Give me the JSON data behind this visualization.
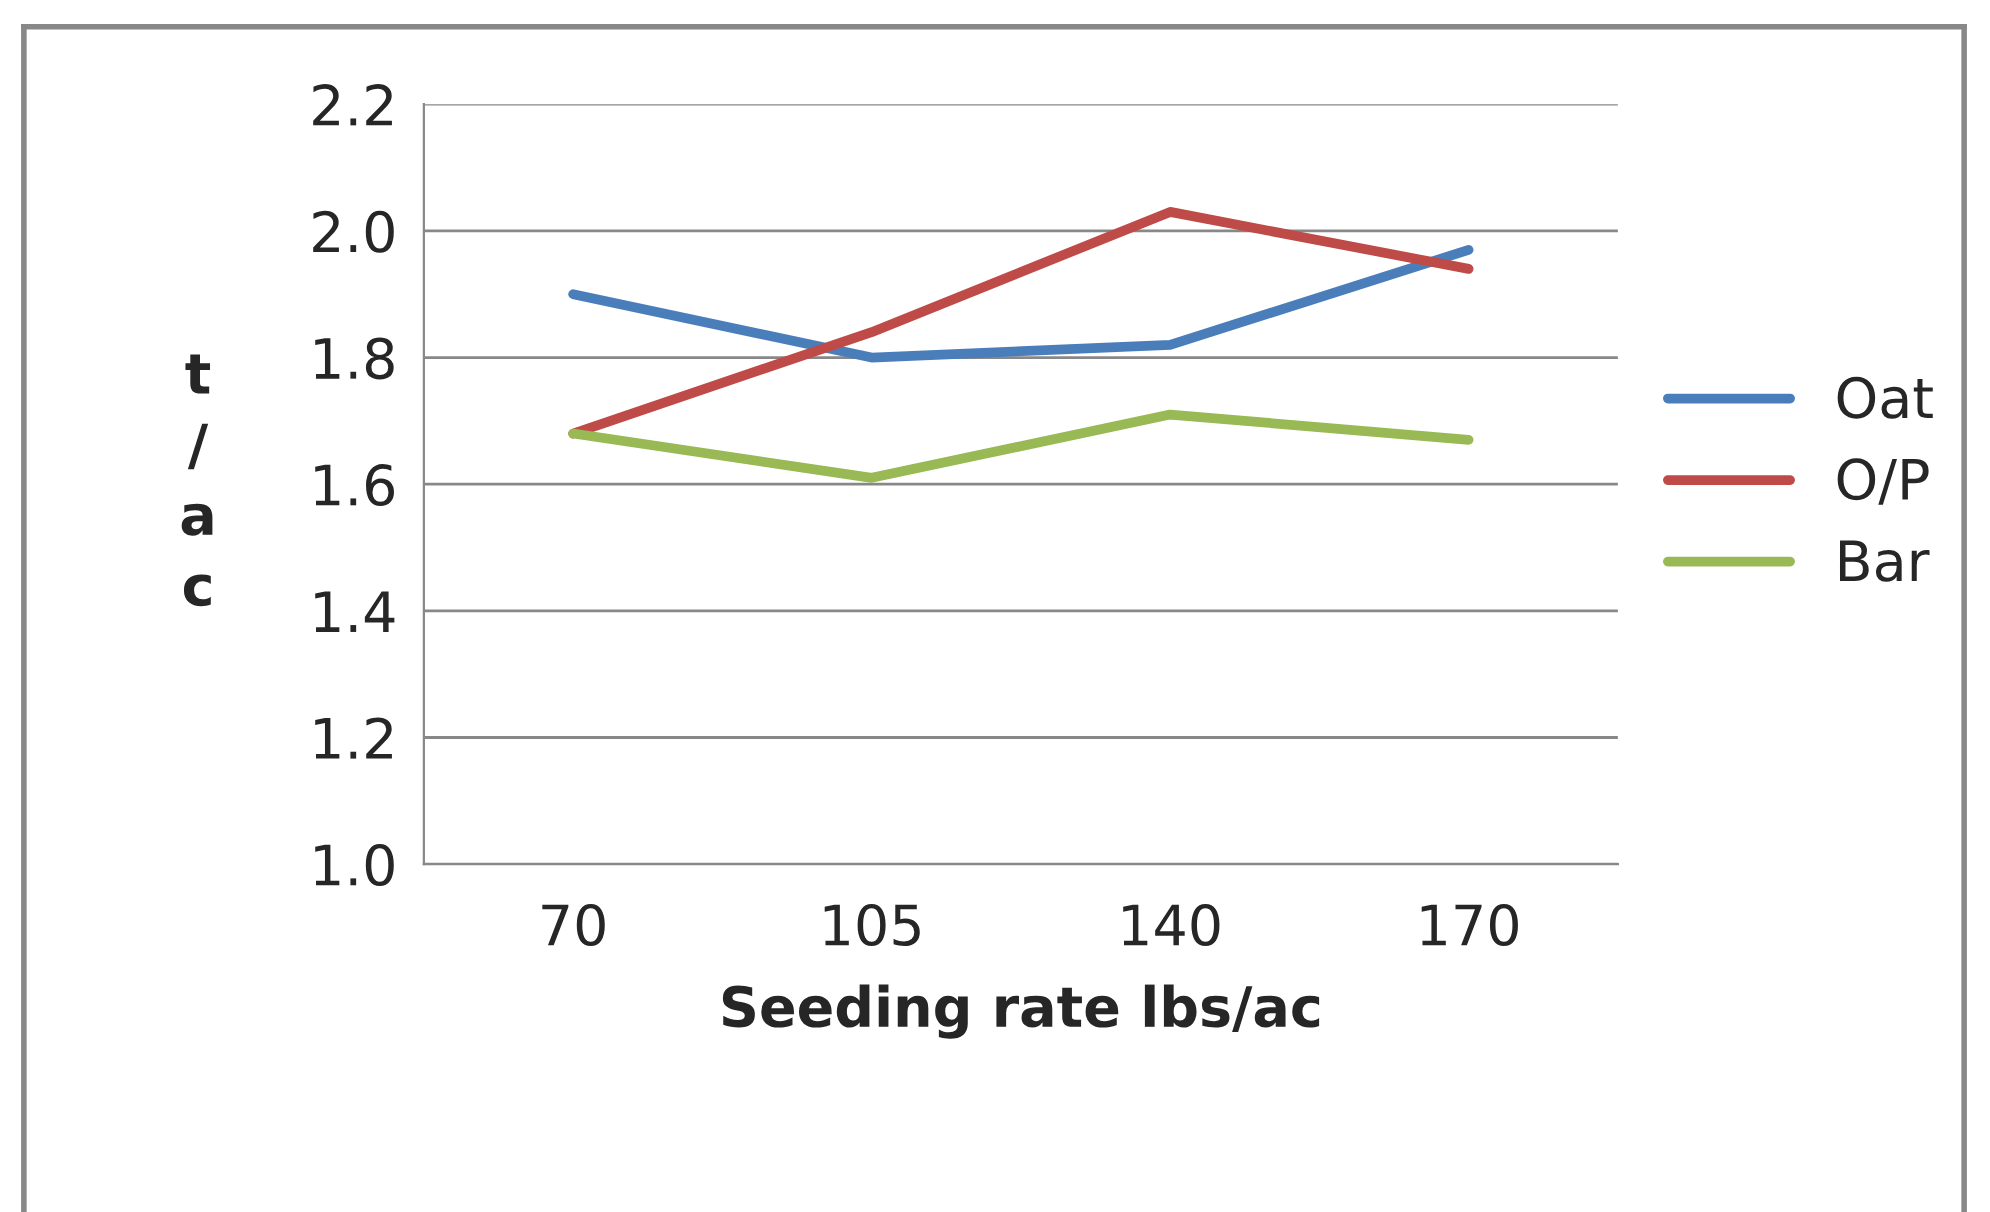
{
  "chart_data": {
    "type": "line",
    "xlabel": "Seeding rate lbs/ac",
    "ylabel": "t\n/\na\nc",
    "categories": [
      "70",
      "105",
      "140",
      "170"
    ],
    "series": [
      {
        "name": "Oat",
        "color": "#4a7ebb",
        "values": [
          1.9,
          1.8,
          1.82,
          1.97
        ]
      },
      {
        "name": "O/P",
        "color": "#be4b48",
        "values": [
          1.68,
          1.84,
          2.03,
          1.94
        ]
      },
      {
        "name": "Bar",
        "color": "#98b954",
        "values": [
          1.68,
          1.61,
          1.71,
          1.67
        ]
      }
    ],
    "ylim": [
      1.0,
      2.2
    ],
    "yticks": [
      {
        "value": 1.0,
        "label": "1.0"
      },
      {
        "value": 1.2,
        "label": "1.2"
      },
      {
        "value": 1.4,
        "label": "1.4"
      },
      {
        "value": 1.6,
        "label": "1.6"
      },
      {
        "value": 1.8,
        "label": "1.8"
      },
      {
        "value": 2.0,
        "label": "2.0"
      },
      {
        "value": 2.2,
        "label": "2.2"
      }
    ],
    "grid": "y",
    "legend": "right",
    "marker": "none",
    "line_style": "solid"
  }
}
